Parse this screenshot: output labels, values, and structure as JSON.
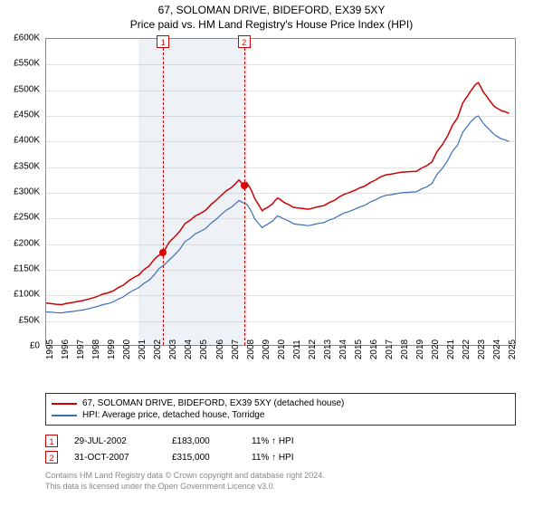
{
  "title": {
    "line1": "67, SOLOMAN DRIVE, BIDEFORD, EX39 5XY",
    "line2": "Price paid vs. HM Land Registry's House Price Index (HPI)"
  },
  "chart": {
    "type": "line",
    "xlim": [
      1995,
      2025.5
    ],
    "ylim": [
      0,
      600000
    ],
    "ytick_step": 50000,
    "yticks": [
      "£0",
      "£50K",
      "£100K",
      "£150K",
      "£200K",
      "£250K",
      "£300K",
      "£350K",
      "£400K",
      "£450K",
      "£500K",
      "£550K",
      "£600K"
    ],
    "xticks": [
      1995,
      1996,
      1997,
      1998,
      1999,
      2000,
      2001,
      2002,
      2003,
      2004,
      2005,
      2006,
      2007,
      2008,
      2009,
      2010,
      2011,
      2012,
      2013,
      2014,
      2015,
      2016,
      2017,
      2018,
      2019,
      2020,
      2021,
      2022,
      2023,
      2024,
      2025
    ],
    "background_color": "#ffffff",
    "grid_color": "#888888",
    "border_color": "#888888",
    "shaded_bands": [
      {
        "start": 2001,
        "end": 2008,
        "color": "#eef2f7"
      }
    ],
    "markers": [
      {
        "id": "1",
        "x": 2002.58,
        "y": 183000,
        "line_color": "#cc0000",
        "box_border": "#cc0000"
      },
      {
        "id": "2",
        "x": 2007.83,
        "y": 315000,
        "line_color": "#cc0000",
        "box_border": "#cc0000"
      }
    ],
    "series": [
      {
        "name": "67, SOLOMAN DRIVE, BIDEFORD, EX39 5XY (detached house)",
        "color": "#cc0000",
        "line_width": 1.5,
        "data": [
          [
            1995,
            85000
          ],
          [
            1996,
            82000
          ],
          [
            1997,
            88000
          ],
          [
            1998,
            95000
          ],
          [
            1999,
            105000
          ],
          [
            2000,
            120000
          ],
          [
            2001,
            140000
          ],
          [
            2002,
            170000
          ],
          [
            2002.58,
            183000
          ],
          [
            2003,
            205000
          ],
          [
            2004,
            240000
          ],
          [
            2005,
            260000
          ],
          [
            2006,
            285000
          ],
          [
            2007,
            310000
          ],
          [
            2007.5,
            325000
          ],
          [
            2007.83,
            315000
          ],
          [
            2008,
            320000
          ],
          [
            2008.5,
            290000
          ],
          [
            2009,
            265000
          ],
          [
            2009.5,
            275000
          ],
          [
            2010,
            290000
          ],
          [
            2010.5,
            280000
          ],
          [
            2011,
            272000
          ],
          [
            2012,
            268000
          ],
          [
            2013,
            275000
          ],
          [
            2014,
            292000
          ],
          [
            2015,
            305000
          ],
          [
            2016,
            320000
          ],
          [
            2017,
            335000
          ],
          [
            2018,
            340000
          ],
          [
            2019,
            342000
          ],
          [
            2020,
            360000
          ],
          [
            2021,
            410000
          ],
          [
            2022,
            475000
          ],
          [
            2022.5,
            498000
          ],
          [
            2023,
            515000
          ],
          [
            2023.5,
            490000
          ],
          [
            2024,
            470000
          ],
          [
            2024.5,
            460000
          ],
          [
            2025,
            455000
          ]
        ]
      },
      {
        "name": "HPI: Average price, detached house, Torridge",
        "color": "#3b6fb6",
        "line_width": 1.2,
        "data": [
          [
            1995,
            68000
          ],
          [
            1996,
            66000
          ],
          [
            1997,
            70000
          ],
          [
            1998,
            76000
          ],
          [
            1999,
            84000
          ],
          [
            2000,
            97000
          ],
          [
            2001,
            115000
          ],
          [
            2002,
            140000
          ],
          [
            2003,
            170000
          ],
          [
            2004,
            205000
          ],
          [
            2005,
            225000
          ],
          [
            2006,
            248000
          ],
          [
            2007,
            272000
          ],
          [
            2007.5,
            285000
          ],
          [
            2008,
            278000
          ],
          [
            2008.5,
            250000
          ],
          [
            2009,
            232000
          ],
          [
            2009.5,
            242000
          ],
          [
            2010,
            255000
          ],
          [
            2010.5,
            248000
          ],
          [
            2011,
            240000
          ],
          [
            2012,
            236000
          ],
          [
            2013,
            242000
          ],
          [
            2014,
            256000
          ],
          [
            2015,
            268000
          ],
          [
            2016,
            282000
          ],
          [
            2017,
            295000
          ],
          [
            2018,
            300000
          ],
          [
            2019,
            302000
          ],
          [
            2020,
            318000
          ],
          [
            2021,
            362000
          ],
          [
            2022,
            418000
          ],
          [
            2022.5,
            438000
          ],
          [
            2023,
            450000
          ],
          [
            2023.5,
            430000
          ],
          [
            2024,
            415000
          ],
          [
            2024.5,
            405000
          ],
          [
            2025,
            400000
          ]
        ]
      }
    ]
  },
  "legend": {
    "items": [
      {
        "label": "67, SOLOMAN DRIVE, BIDEFORD, EX39 5XY (detached house)",
        "color": "#cc0000"
      },
      {
        "label": "HPI: Average price, detached house, Torridge",
        "color": "#3b6fb6"
      }
    ]
  },
  "sales": [
    {
      "id": "1",
      "date": "29-JUL-2002",
      "price": "£183,000",
      "pct": "11% ↑ HPI"
    },
    {
      "id": "2",
      "date": "31-OCT-2007",
      "price": "£315,000",
      "pct": "11% ↑ HPI"
    }
  ],
  "footnote": {
    "line1": "Contains HM Land Registry data © Crown copyright and database right 2024.",
    "line2": "This data is licensed under the Open Government Licence v3.0."
  },
  "fonts": {
    "title_size": 12,
    "tick_size": 10,
    "legend_size": 10,
    "footnote_size": 9
  }
}
